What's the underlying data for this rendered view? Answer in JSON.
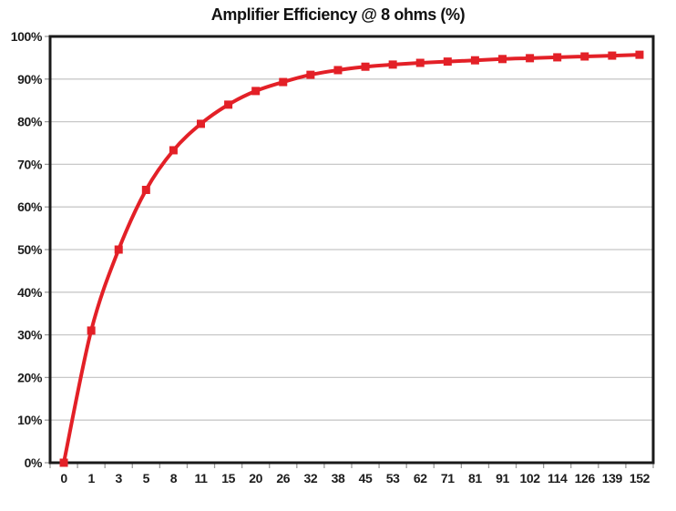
{
  "chart_data": {
    "type": "line",
    "title": "Amplifier Efficiency @ 8 ohms (%)",
    "categories": [
      "0",
      "1",
      "3",
      "5",
      "8",
      "11",
      "15",
      "20",
      "26",
      "32",
      "38",
      "45",
      "53",
      "62",
      "71",
      "81",
      "91",
      "102",
      "114",
      "126",
      "139",
      "152"
    ],
    "values": [
      0,
      31,
      50,
      64,
      73.3,
      79.5,
      84,
      87.2,
      89.3,
      91,
      92.1,
      92.9,
      93.4,
      93.8,
      94.1,
      94.4,
      94.7,
      94.9,
      95.1,
      95.3,
      95.5,
      95.7
    ],
    "xlabel": "",
    "ylabel": "",
    "ylim": [
      0,
      100
    ],
    "y_ticks": [
      "0%",
      "10%",
      "20%",
      "30%",
      "40%",
      "50%",
      "60%",
      "70%",
      "80%",
      "90%",
      "100%"
    ],
    "grid": "horizontal",
    "legend": "none",
    "smooth": true,
    "marker": "square",
    "colors": {
      "series": "#e32027",
      "gridline": "#c8c8c8",
      "plot_border": "#1a1a1a",
      "tick": "#9a9a9a",
      "label": "#1c1c1c",
      "background": "#ffffff"
    }
  }
}
